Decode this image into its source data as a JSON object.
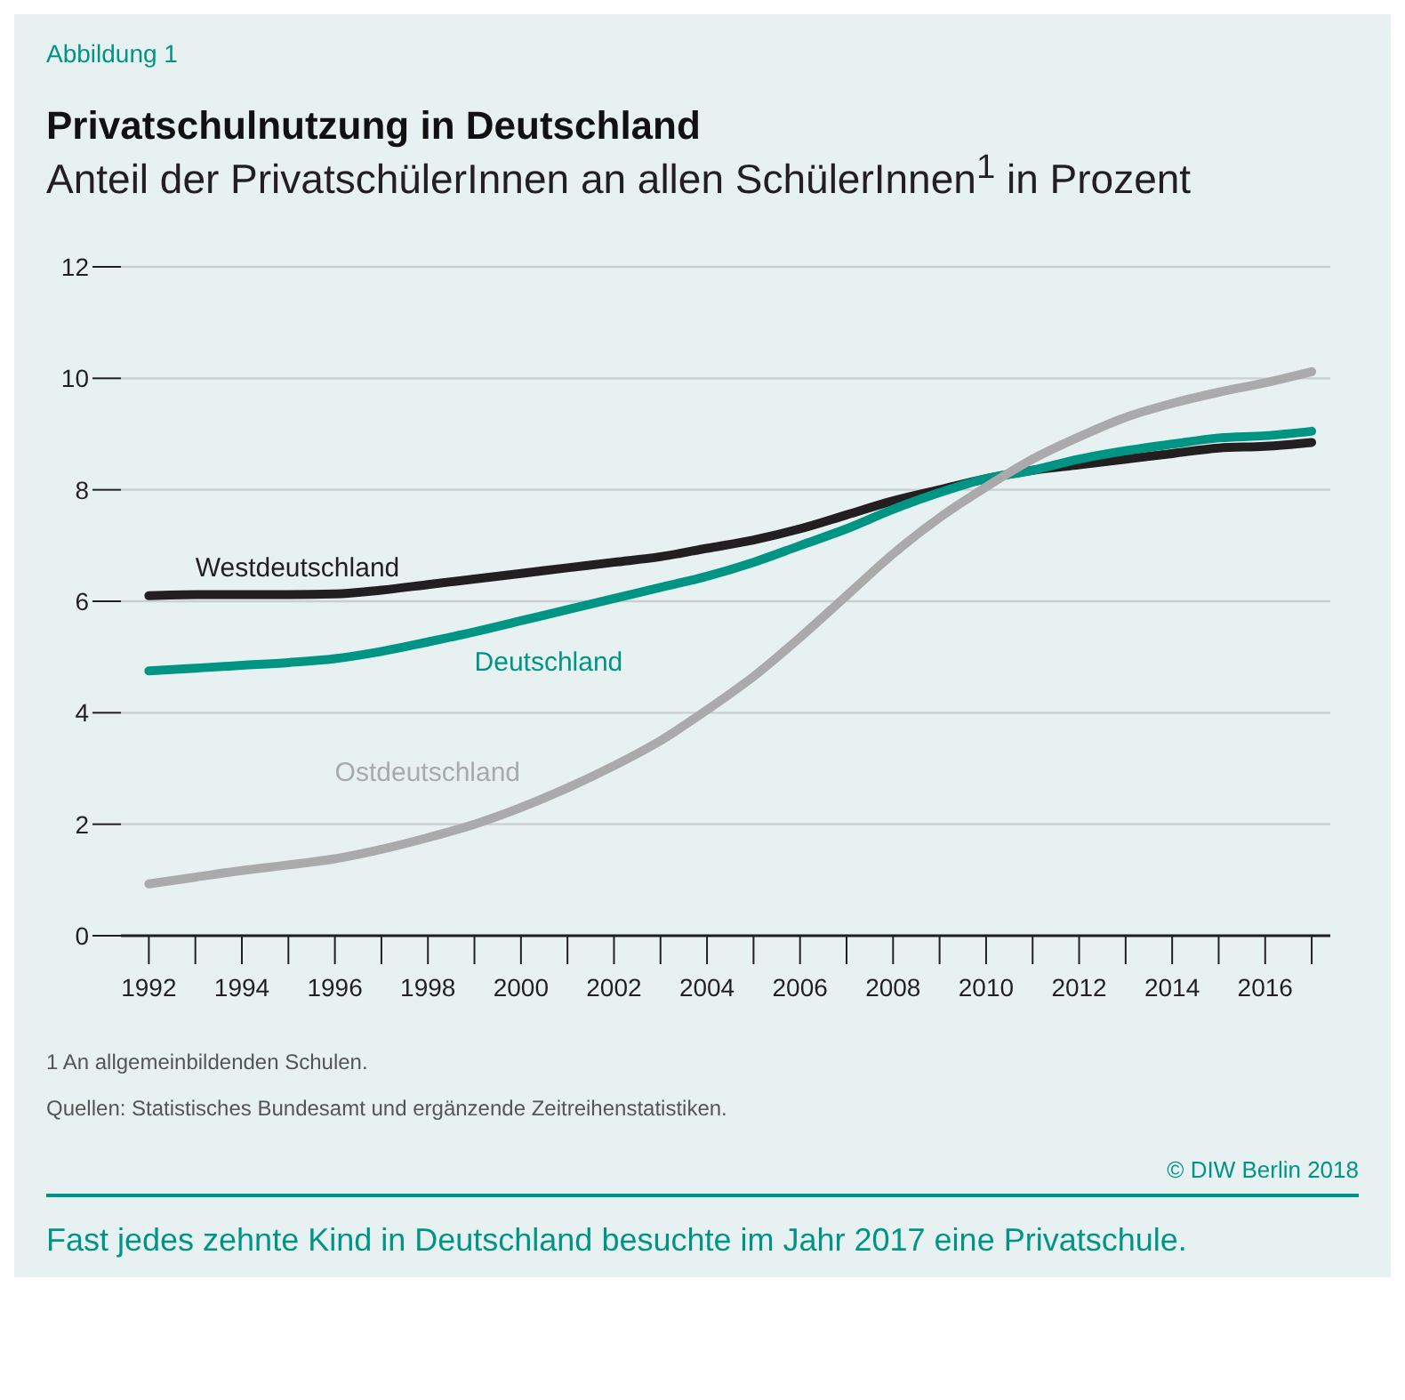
{
  "chart_data": {
    "type": "line",
    "title": "Privatschulnutzung in Deutschland",
    "subtitle": "Anteil der PrivatschülerInnen an allen SchülerInnen$^{1}$ in Prozent",
    "x": [
      1992,
      1993,
      1994,
      1995,
      1996,
      1997,
      1998,
      1999,
      2000,
      2001,
      2002,
      2003,
      2004,
      2005,
      2006,
      2007,
      2008,
      2009,
      2010,
      2011,
      2012,
      2013,
      2014,
      2015,
      2016,
      2017
    ],
    "series": [
      {
        "name": "Westdeutschland",
        "color": "#231f20",
        "values": [
          6.1,
          6.12,
          6.12,
          6.12,
          6.13,
          6.2,
          6.3,
          6.4,
          6.5,
          6.6,
          6.7,
          6.8,
          6.95,
          7.1,
          7.3,
          7.55,
          7.8,
          8.0,
          8.2,
          8.35,
          8.45,
          8.55,
          8.65,
          8.75,
          8.78,
          8.85
        ]
      },
      {
        "name": "Deutschland",
        "color": "#009484",
        "values": [
          4.75,
          4.8,
          4.85,
          4.9,
          4.97,
          5.1,
          5.27,
          5.45,
          5.65,
          5.85,
          6.05,
          6.25,
          6.45,
          6.7,
          7.0,
          7.3,
          7.65,
          7.95,
          8.2,
          8.35,
          8.55,
          8.7,
          8.82,
          8.93,
          8.97,
          9.05
        ]
      },
      {
        "name": "Ostdeutschland",
        "color": "#aaaaaa",
        "values": [
          0.93,
          1.05,
          1.17,
          1.27,
          1.38,
          1.55,
          1.76,
          2.0,
          2.3,
          2.65,
          3.05,
          3.5,
          4.05,
          4.65,
          5.35,
          6.1,
          6.85,
          7.5,
          8.05,
          8.55,
          8.95,
          9.3,
          9.55,
          9.75,
          9.92,
          10.12
        ]
      }
    ],
    "xlim": [
      1991.4,
      2017.4
    ],
    "xticks": [
      1992,
      {
        "value": 1993,
        "label": null
      },
      1994,
      {
        "value": 1995,
        "label": null
      },
      1996,
      {
        "value": 1997,
        "label": null
      },
      1998,
      {
        "value": 1999,
        "label": null
      },
      2000,
      {
        "value": 2001,
        "label": null
      },
      2002,
      {
        "value": 2003,
        "label": null
      },
      2004,
      {
        "value": 2005,
        "label": null
      },
      2006,
      {
        "value": 2007,
        "label": null
      },
      2008,
      {
        "value": 2009,
        "label": null
      },
      2010,
      {
        "value": 2011,
        "label": null
      },
      2012,
      {
        "value": 2013,
        "label": null
      },
      2014,
      {
        "value": 2015,
        "label": null
      },
      2016,
      {
        "value": 2017,
        "label": null
      }
    ],
    "ylim": [
      0,
      12
    ],
    "yticks": [
      0,
      2,
      4,
      6,
      8,
      10,
      12
    ],
    "grid": "y",
    "legend": false,
    "marker": "none",
    "line_style": "solid",
    "annotations": [
      "Abbildung 1",
      "1  An allgemeinbildenden Schulen.",
      "Quellen: Statistisches Bundesamt und ergänzende Zeitreihenstatistiken.",
      "© DIW Berlin 2018",
      "Fast jedes zehnte Kind in Deutschland besuchte im Jahr 2017 eine Privatschule."
    ]
  }
}
